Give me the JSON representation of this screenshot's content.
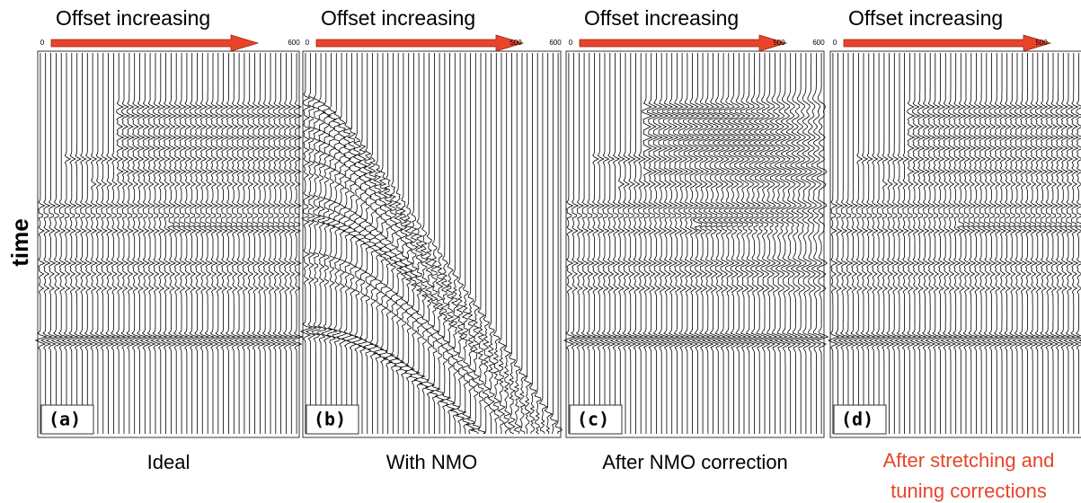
{
  "y_axis_label": "time",
  "panels": [
    {
      "header": "Offset increasing",
      "ticks": [
        "0",
        "600"
      ],
      "tag": "(a)",
      "caption": "Ideal"
    },
    {
      "header": "Offset increasing",
      "ticks": [
        "0",
        "500",
        "600"
      ],
      "tag": "(b)",
      "caption": "With NMO"
    },
    {
      "header": "Offset increasing",
      "ticks": [
        "0",
        "500",
        "600"
      ],
      "tag": "(c)",
      "caption": "After NMO correction"
    },
    {
      "header": "Offset increasing",
      "ticks": [
        "0",
        "500"
      ],
      "tag": "(d)",
      "caption": [
        "After stretching and",
        "tuning corrections"
      ]
    }
  ]
}
